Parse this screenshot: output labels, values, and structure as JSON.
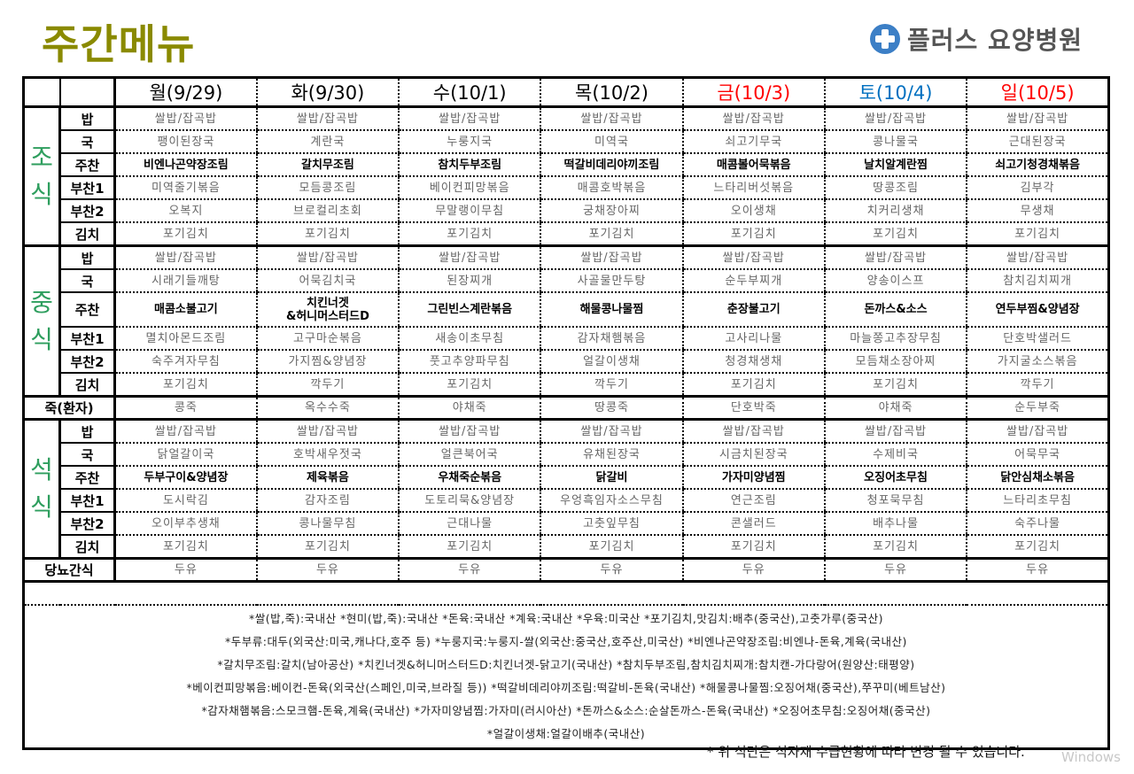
{
  "title": "주간메뉴",
  "logo": {
    "text": "플러스 요양병원",
    "icon": "medical-cross-icon",
    "color": "#3c7fc6"
  },
  "colors": {
    "title": "#8a8a00",
    "meal_label": "#2e9e5e",
    "holiday": "#ff0000",
    "saturday": "#0070c0"
  },
  "days": [
    {
      "label": "월(9/29)",
      "color": "#000000"
    },
    {
      "label": "화(9/30)",
      "color": "#000000"
    },
    {
      "label": "수(10/1)",
      "color": "#000000"
    },
    {
      "label": "목(10/2)",
      "color": "#000000"
    },
    {
      "label": "금(10/3)",
      "color": "#ff0000"
    },
    {
      "label": "토(10/4)",
      "color": "#0070c0"
    },
    {
      "label": "일(10/5)",
      "color": "#ff0000"
    }
  ],
  "meals": [
    {
      "name": "조식",
      "rows": [
        {
          "cat": "밥",
          "items": [
            "쌀밥/잡곡밥",
            "쌀밥/잡곡밥",
            "쌀밥/잡곡밥",
            "쌀밥/잡곡밥",
            "쌀밥/잡곡밥",
            "쌀밥/잡곡밥",
            "쌀밥/잡곡밥"
          ]
        },
        {
          "cat": "국",
          "items": [
            "팽이된장국",
            "계란국",
            "누룽지국",
            "미역국",
            "쇠고기무국",
            "콩나물국",
            "근대된장국"
          ]
        },
        {
          "cat": "주찬",
          "bold": true,
          "items": [
            "비엔나곤약장조림",
            "갈치무조림",
            "참치두부조림",
            "떡갈비데리야끼조림",
            "매콤볼어묵볶음",
            "날치알계란찜",
            "쇠고기청경채볶음"
          ]
        },
        {
          "cat": "부찬1",
          "items": [
            "미역줄기볶음",
            "모듬콩조림",
            "베이컨피망볶음",
            "매콤호박볶음",
            "느타리버섯볶음",
            "땅콩조림",
            "김부각"
          ]
        },
        {
          "cat": "부찬2",
          "items": [
            "오복지",
            "브로컬리초회",
            "무말랭이무침",
            "궁채장아찌",
            "오이생채",
            "치커리생채",
            "무생채"
          ]
        },
        {
          "cat": "김치",
          "items": [
            "포기김치",
            "포기김치",
            "포기김치",
            "포기김치",
            "포기김치",
            "포기김치",
            "포기김치"
          ]
        }
      ]
    },
    {
      "name": "중식",
      "rows": [
        {
          "cat": "밥",
          "items": [
            "쌀밥/잡곡밥",
            "쌀밥/잡곡밥",
            "쌀밥/잡곡밥",
            "쌀밥/잡곡밥",
            "쌀밥/잡곡밥",
            "쌀밥/잡곡밥",
            "쌀밥/잡곡밥"
          ]
        },
        {
          "cat": "국",
          "items": [
            "시래기들깨탕",
            "어묵김치국",
            "된장찌개",
            "사골물만두탕",
            "순두부찌개",
            "양송이스프",
            "참치김치찌개"
          ]
        },
        {
          "cat": "주찬",
          "bold": true,
          "tall": true,
          "items": [
            "매콤소불고기",
            "치킨너겟\n&허니머스터드D",
            "그린빈스계란볶음",
            "해물콩나물찜",
            "춘장불고기",
            "돈까스&소스",
            "연두부찜&양념장"
          ]
        },
        {
          "cat": "부찬1",
          "items": [
            "멸치아몬드조림",
            "고구마순볶음",
            "새송이초무침",
            "감자채햄볶음",
            "고사리나물",
            "마늘쫑고추장무침",
            "단호박샐러드"
          ]
        },
        {
          "cat": "부찬2",
          "items": [
            "숙주겨자무침",
            "가지찜&양념장",
            "풋고추양파무침",
            "얼갈이생채",
            "청경채생채",
            "모듬채소장아찌",
            "가지굴소스볶음"
          ]
        },
        {
          "cat": "김치",
          "items": [
            "포기김치",
            "깍두기",
            "포기김치",
            "깍두기",
            "포기김치",
            "포기김치",
            "깍두기"
          ]
        }
      ]
    },
    {
      "single": true,
      "name": "죽(환자)",
      "items": [
        "콩죽",
        "옥수수죽",
        "야채죽",
        "땅콩죽",
        "단호박죽",
        "야채죽",
        "순두부죽"
      ]
    },
    {
      "name": "석식",
      "rows": [
        {
          "cat": "밥",
          "items": [
            "쌀밥/잡곡밥",
            "쌀밥/잡곡밥",
            "쌀밥/잡곡밥",
            "쌀밥/잡곡밥",
            "쌀밥/잡곡밥",
            "쌀밥/잡곡밥",
            "쌀밥/잡곡밥"
          ]
        },
        {
          "cat": "국",
          "items": [
            "닭얼갈이국",
            "호박새우젓국",
            "얼큰북어국",
            "유채된장국",
            "시금치된장국",
            "수제비국",
            "어묵무국"
          ]
        },
        {
          "cat": "주찬",
          "bold": true,
          "items": [
            "두부구이&양념장",
            "제육볶음",
            "우채죽순볶음",
            "닭갈비",
            "가자미양념찜",
            "오징어초무침",
            "닭안심채소볶음"
          ]
        },
        {
          "cat": "부찬1",
          "items": [
            "도시락김",
            "감자조림",
            "도토리묵&양념장",
            "우엉흑임자소스무침",
            "연근조림",
            "청포묵무침",
            "느타리초무침"
          ]
        },
        {
          "cat": "부찬2",
          "items": [
            "오이부추생채",
            "콩나물무침",
            "근대나물",
            "고춧잎무침",
            "콘샐러드",
            "배추나물",
            "숙주나물"
          ]
        },
        {
          "cat": "김치",
          "items": [
            "포기김치",
            "포기김치",
            "포기김치",
            "포기김치",
            "포기김치",
            "포기김치",
            "포기김치"
          ]
        }
      ]
    },
    {
      "single": true,
      "name": "당뇨간식",
      "items": [
        "두유",
        "두유",
        "두유",
        "두유",
        "두유",
        "두유",
        "두유"
      ]
    }
  ],
  "notes": [
    "*쌀(밥,죽):국내산 *현미(밥,죽):국내산 *돈육:국내산 *계육:국내산 *우육:미국산 *포기김치,맛김치:배추(중국산),고춧가루(중국산)",
    "*두부류:대두(외국산:미국,캐나다,호주 등) *누룽지국:누룽지-쌀(외국산:중국산,호주산,미국산) *비엔나곤약장조림:비엔나-돈육,계육(국내산)",
    "*갈치무조림:갈치(남아공산) *치킨너겟&허니머스터드D:치킨너겟-닭고기(국내산) *참치두부조림,참치김치찌개:참치캔-가다랑어(원양산:태평양)",
    "*베이컨피망볶음:베이컨-돈육(외국산(스페인,미국,브라질 등)) *떡갈비데리야끼조림:떡갈비-돈육(국내산) *해물콩나물찜:오징어채(중국산),쭈꾸미(베트남산)",
    "*감자채햄볶음:스모크햄-돈육,계육(국내산) *가자미양념찜:가자미(러시아산) *돈까스&소스:순살돈까스-돈육(국내산) *오징어초무침:오징어채(중국산)",
    "*얼갈이생채:얼갈이배추(국내산)"
  ],
  "disclaimer": "* 위 식단은 식자재 수급현황에 따라 변경 될 수 있습니다.",
  "watermark": "Windows"
}
